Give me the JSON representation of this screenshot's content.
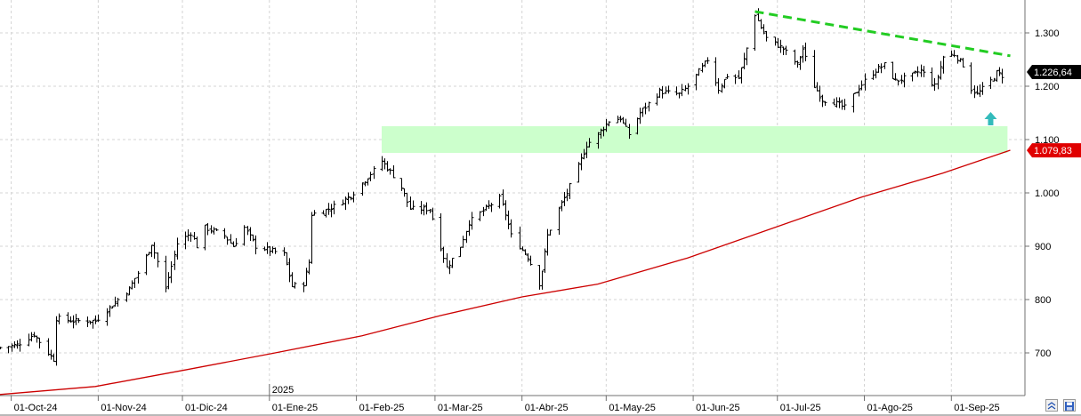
{
  "chart_data": {
    "type": "bar",
    "subtype": "ohlc",
    "title": "",
    "xlabel": "",
    "ylabel": "",
    "ylim": [
      630,
      1370
    ],
    "grid": true,
    "y_ticks": [
      700,
      800,
      900,
      1000,
      1100,
      1200,
      1300
    ],
    "y_tick_labels": [
      "700",
      "800",
      "900",
      "1.000",
      "1.100",
      "1.200",
      "1.300"
    ],
    "x_tick_labels": [
      "01-Oct-24",
      "01-Nov-24",
      "01-Dic-24",
      "01-Ene-25",
      "01-Feb-25",
      "01-Mar-25",
      "01-Abr-25",
      "01-May-25",
      "01-Jun-25",
      "01-Jul-25",
      "01-Ago-25",
      "01-Sep-25"
    ],
    "year_label": "2025",
    "last_price_label": "1.226,64",
    "ma_label": "1.079,83",
    "last_price": 1226.64,
    "ma_value": 1079.83,
    "support_zone": [
      1075,
      1125
    ],
    "resistance_line": {
      "start_date": "2025-06-23",
      "start_value": 1340,
      "end_date": "2025-09-22",
      "end_value": 1257
    },
    "price_points": [
      [
        "2024-09-27",
        710
      ],
      [
        "2024-10-03",
        715
      ],
      [
        "2024-10-09",
        735
      ],
      [
        "2024-10-14",
        700
      ],
      [
        "2024-10-16",
        688
      ],
      [
        "2024-10-17",
        765
      ],
      [
        "2024-10-23",
        760
      ],
      [
        "2024-10-31",
        760
      ],
      [
        "2024-11-06",
        790
      ],
      [
        "2024-11-12",
        820
      ],
      [
        "2024-11-18",
        880
      ],
      [
        "2024-11-20",
        905
      ],
      [
        "2024-11-25",
        820
      ],
      [
        "2024-11-29",
        905
      ],
      [
        "2024-12-04",
        925
      ],
      [
        "2024-12-06",
        900
      ],
      [
        "2024-12-09",
        935
      ],
      [
        "2024-12-16",
        920
      ],
      [
        "2024-12-19",
        900
      ],
      [
        "2024-12-23",
        935
      ],
      [
        "2024-12-27",
        900
      ],
      [
        "2025-01-06",
        885
      ],
      [
        "2025-01-09",
        825
      ],
      [
        "2025-01-13",
        830
      ],
      [
        "2025-01-15",
        870
      ],
      [
        "2025-01-16",
        960
      ],
      [
        "2025-01-20",
        965
      ],
      [
        "2025-01-24",
        975
      ],
      [
        "2025-01-30",
        995
      ],
      [
        "2025-02-05",
        1030
      ],
      [
        "2025-02-10",
        1060
      ],
      [
        "2025-02-13",
        1040
      ],
      [
        "2025-02-17",
        1010
      ],
      [
        "2025-02-20",
        970
      ],
      [
        "2025-02-27",
        970
      ],
      [
        "2025-03-01",
        935
      ],
      [
        "2025-03-04",
        880
      ],
      [
        "2025-03-05",
        860
      ],
      [
        "2025-03-10",
        900
      ],
      [
        "2025-03-13",
        945
      ],
      [
        "2025-03-20",
        975
      ],
      [
        "2025-03-24",
        990
      ],
      [
        "2025-03-26",
        960
      ],
      [
        "2025-03-28",
        920
      ],
      [
        "2025-04-03",
        880
      ],
      [
        "2025-04-07",
        830
      ],
      [
        "2025-04-08",
        855
      ],
      [
        "2025-04-10",
        920
      ],
      [
        "2025-04-14",
        970
      ],
      [
        "2025-04-17",
        1000
      ],
      [
        "2025-04-21",
        1050
      ],
      [
        "2025-04-24",
        1090
      ],
      [
        "2025-04-28",
        1110
      ],
      [
        "2025-05-02",
        1135
      ],
      [
        "2025-05-06",
        1140
      ],
      [
        "2025-05-09",
        1110
      ],
      [
        "2025-05-13",
        1150
      ],
      [
        "2025-05-20",
        1190
      ],
      [
        "2025-05-27",
        1185
      ],
      [
        "2025-05-30",
        1200
      ],
      [
        "2025-06-02",
        1220
      ],
      [
        "2025-06-06",
        1250
      ],
      [
        "2025-06-10",
        1195
      ],
      [
        "2025-06-13",
        1220
      ],
      [
        "2025-06-17",
        1215
      ],
      [
        "2025-06-19",
        1250
      ],
      [
        "2025-06-23",
        1335
      ],
      [
        "2025-06-25",
        1310
      ],
      [
        "2025-06-27",
        1290
      ],
      [
        "2025-07-03",
        1270
      ],
      [
        "2025-07-08",
        1240
      ],
      [
        "2025-07-10",
        1270
      ],
      [
        "2025-07-14",
        1200
      ],
      [
        "2025-07-17",
        1175
      ],
      [
        "2025-07-21",
        1170
      ],
      [
        "2025-07-25",
        1160
      ],
      [
        "2025-07-29",
        1190
      ],
      [
        "2025-08-01",
        1210
      ],
      [
        "2025-08-05",
        1230
      ],
      [
        "2025-08-08",
        1240
      ],
      [
        "2025-08-12",
        1210
      ],
      [
        "2025-08-18",
        1220
      ],
      [
        "2025-08-21",
        1230
      ],
      [
        "2025-08-26",
        1200
      ],
      [
        "2025-08-29",
        1255
      ],
      [
        "2025-09-02",
        1260
      ],
      [
        "2025-09-05",
        1240
      ],
      [
        "2025-09-08",
        1195
      ],
      [
        "2025-09-10",
        1185
      ],
      [
        "2025-09-15",
        1210
      ],
      [
        "2025-09-17",
        1225
      ],
      [
        "2025-09-19",
        1220
      ]
    ],
    "ma_points": [
      [
        "2024-09-27",
        622
      ],
      [
        "2024-10-31",
        637
      ],
      [
        "2024-12-02",
        668
      ],
      [
        "2025-01-02",
        699
      ],
      [
        "2025-02-03",
        732
      ],
      [
        "2025-03-03",
        770
      ],
      [
        "2025-04-01",
        805
      ],
      [
        "2025-04-28",
        829
      ],
      [
        "2025-05-30",
        878
      ],
      [
        "2025-06-30",
        935
      ],
      [
        "2025-07-31",
        992
      ],
      [
        "2025-08-29",
        1037
      ],
      [
        "2025-09-22",
        1080
      ]
    ],
    "colors": {
      "bars": "#000000",
      "moving_average": "#cc0000",
      "resistance": "#22cc22",
      "support_zone": "#ccffcc",
      "arrow": "#33bbbb",
      "grid": "#d4d4d4",
      "last_price_tag": "#000000",
      "ma_tag": "#e00000"
    }
  },
  "toolbar": {
    "icons": [
      "collapse-icon",
      "save-icon"
    ]
  }
}
